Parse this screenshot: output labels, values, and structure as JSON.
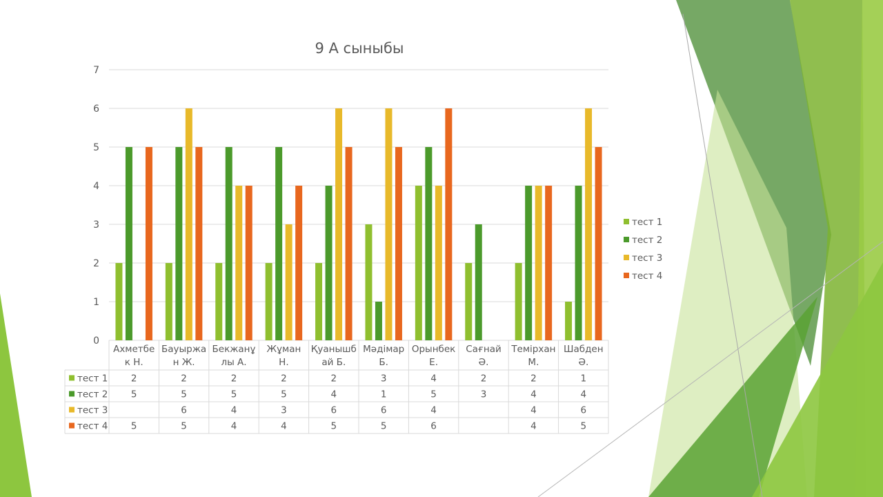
{
  "slide": {
    "accent_colors": [
      "#8dc63f",
      "#4f9a2a",
      "#2e6b1f",
      "#c8e39a"
    ]
  },
  "chart_data": {
    "type": "bar",
    "title": "9 А сыныбы",
    "categories": [
      [
        "Ахметбе",
        "к Н."
      ],
      [
        "Бауыржа",
        "н Ж."
      ],
      [
        "Бекжанұ",
        "лы А."
      ],
      [
        "Жұман",
        "Н."
      ],
      [
        "Қуанышб",
        "ай Б."
      ],
      [
        "Мәдімар",
        "Б."
      ],
      [
        "Орынбек",
        "Е."
      ],
      [
        "Сағнай",
        "Ә."
      ],
      [
        "Темірхан",
        "М."
      ],
      [
        "Шабден",
        "Ә."
      ]
    ],
    "series": [
      {
        "name": "тест 1",
        "color": "#8fbf2f",
        "values": [
          2,
          2,
          2,
          2,
          2,
          3,
          4,
          2,
          2,
          1
        ]
      },
      {
        "name": "тест 2",
        "color": "#4b9a2b",
        "values": [
          5,
          5,
          5,
          5,
          4,
          1,
          5,
          3,
          4,
          4
        ]
      },
      {
        "name": "тест 3",
        "color": "#e8b92a",
        "values": [
          null,
          6,
          4,
          3,
          6,
          6,
          4,
          null,
          4,
          6
        ]
      },
      {
        "name": "тест 4",
        "color": "#e8671e",
        "values": [
          5,
          5,
          4,
          4,
          5,
          5,
          6,
          null,
          4,
          5
        ]
      }
    ],
    "yticks": [
      "0",
      "1",
      "2",
      "3",
      "4",
      "5",
      "6",
      "7"
    ],
    "ylim": [
      0,
      7
    ],
    "grid": true,
    "legend_position": "right",
    "data_table": true
  }
}
